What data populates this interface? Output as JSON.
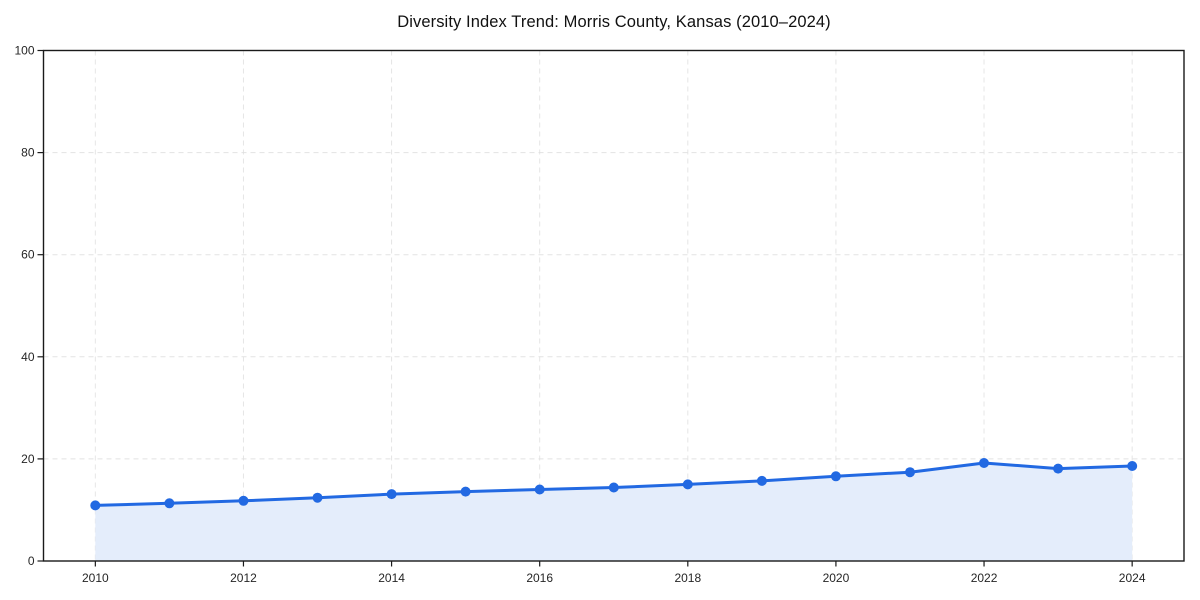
{
  "chart_data": {
    "type": "area",
    "title": "Diversity Index Trend: Morris County, Kansas (2010–2024)",
    "xlabel": "",
    "ylabel": "",
    "x": [
      2010,
      2011,
      2012,
      2013,
      2014,
      2015,
      2016,
      2017,
      2018,
      2019,
      2020,
      2021,
      2022,
      2023,
      2024
    ],
    "values": [
      10.9,
      11.3,
      11.8,
      12.4,
      13.1,
      13.6,
      14.0,
      14.4,
      15.0,
      15.7,
      16.6,
      17.4,
      19.2,
      18.1,
      18.6
    ],
    "xlim": [
      2009.3,
      2024.7
    ],
    "ylim": [
      0,
      100
    ],
    "xticks": [
      2010,
      2012,
      2014,
      2016,
      2018,
      2020,
      2022,
      2024
    ],
    "yticks": [
      0,
      20,
      40,
      60,
      80,
      100
    ],
    "grid": true,
    "grid_style": "dashed",
    "legend": "none",
    "marker": "circle",
    "colors": {
      "line": "#2269e2",
      "marker": "#2269e2",
      "fill": "#e4edfb",
      "grid": "#dfdfdf",
      "spine": "#1a1a1a",
      "tick_label": "#262626",
      "title": "#111111",
      "background": "#ffffff"
    }
  }
}
